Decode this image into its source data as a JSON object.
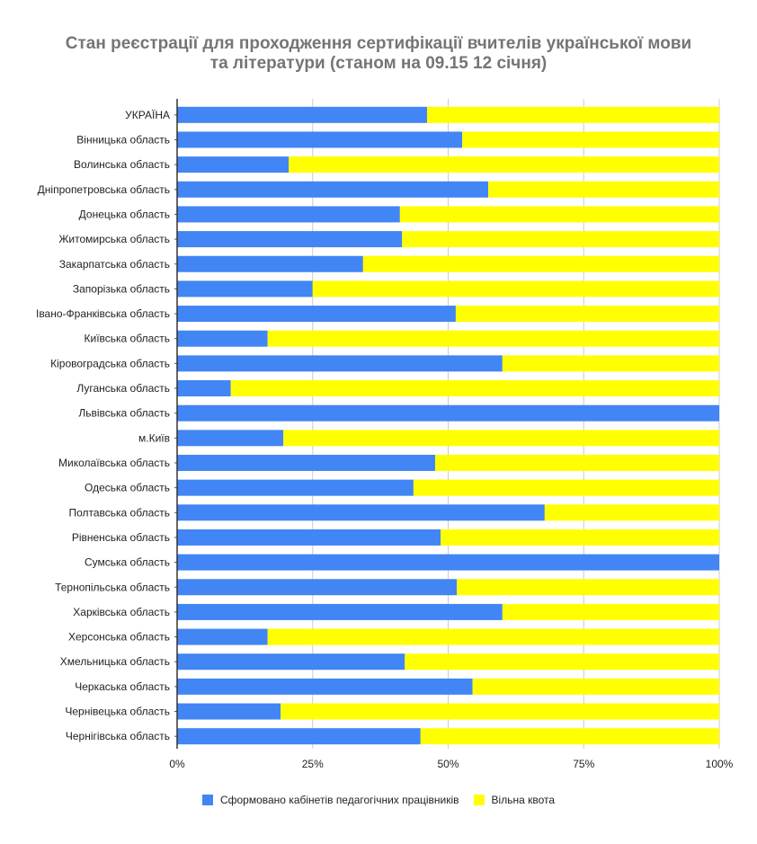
{
  "chart_data": {
    "type": "bar",
    "orientation": "horizontal",
    "stacked": "percent",
    "title": "Стан реєстрації для проходження сертифікації вчителів української мови та літератури (станом на 09.15 12 січня)",
    "title_lines": [
      "Стан реєстрації для проходження сертифікації вчителів української мови",
      "та літератури (станом на 09.15 12 січня)"
    ],
    "xlabel": "",
    "ylabel": "",
    "xlim": [
      0,
      100
    ],
    "x_ticks": [
      "0%",
      "25%",
      "50%",
      "75%",
      "100%"
    ],
    "x_tick_values": [
      0,
      25,
      50,
      75,
      100
    ],
    "grid": true,
    "legend_position": "bottom",
    "categories": [
      "УКРАЇНА",
      "Вінницька область",
      "Волинська область",
      "Дніпропетровська область",
      "Донецька область",
      "Житомирська область",
      "Закарпатська область",
      "Запорізька область",
      "Івано-Франківська область",
      "Київська область",
      "Кіровоградська область",
      "Луганська область",
      "Львівська область",
      "м.Київ",
      "Миколаївська область",
      "Одеська область",
      "Полтавська область",
      "Рівненська область",
      "Сумська область",
      "Тернопільська область",
      "Харківська область",
      "Херсонська область",
      "Хмельницька область",
      "Черкаська область",
      "Чернівецька область",
      "Чернігівська область"
    ],
    "series": [
      {
        "name": "Сформовано кабінетів педагогічних працівників",
        "color": "#4285f4",
        "values": [
          46.1,
          52.6,
          20.6,
          57.4,
          41.1,
          41.5,
          34.3,
          25.0,
          51.4,
          16.7,
          60.0,
          9.9,
          100,
          19.6,
          47.6,
          43.6,
          67.8,
          48.6,
          100,
          51.6,
          60.0,
          16.7,
          42.0,
          54.5,
          19.1,
          44.9
        ]
      },
      {
        "name": "Вільна квота",
        "color": "#ffff00",
        "values": [
          53.9,
          47.4,
          79.4,
          42.6,
          58.9,
          58.5,
          65.7,
          75.0,
          48.6,
          83.3,
          40.0,
          90.1,
          0,
          80.4,
          52.4,
          56.4,
          32.2,
          51.4,
          0,
          48.4,
          40.0,
          83.3,
          58.0,
          45.5,
          80.9,
          55.1
        ]
      }
    ]
  }
}
